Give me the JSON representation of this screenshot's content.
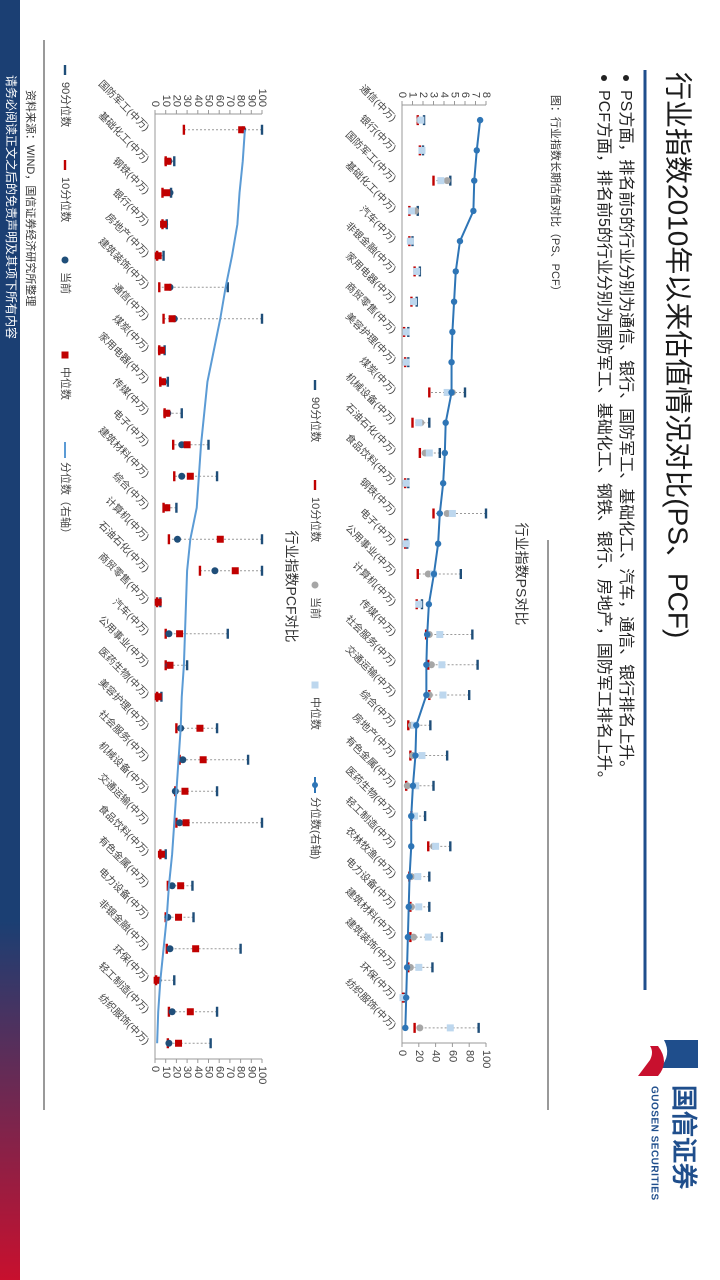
{
  "title": "行业指数2010年以来估值情况对比(PS、PCF)",
  "bullets": [
    "PS方面，排名前5的行业分别为通信、银行、国防军工、基础化工、汽车，通信、银行排名上升。",
    "PCF方面，排名前5的行业分别为国防军工、基础化工、钢铁、银行、房地产，国防军工排名上升。"
  ],
  "figure_caption": "图：行业指数长期估值对比（PS、PCF）",
  "source": "资料来源：WIND，国信证券经济研究所整理",
  "footer": "请务必阅读正文之后的免责声明及其项下所有内容",
  "logo": {
    "name": "国信证券",
    "name_en": "GUOSEN SECURITIES"
  },
  "chart_data": [
    {
      "type": "dot",
      "title": "行业指数PS对比",
      "categories": [
        "通信(中万)",
        "银行(中万)",
        "国防军工(中万)",
        "基础化工(中万)",
        "汽车(中万)",
        "非银金融(中万)",
        "家用电器(中万)",
        "商贸零售(中万)",
        "美容护理(中万)",
        "煤炭(中万)",
        "机械设备(中万)",
        "石油石化(中万)",
        "食品饮料(中万)",
        "钢铁(中万)",
        "电子(中万)",
        "公用事业(中万)",
        "计算机(中万)",
        "传媒(中万)",
        "社会服务(中万)",
        "交通运输(中万)",
        "综合(中万)",
        "房地产(中万)",
        "有色金属(中万)",
        "医药生物(中万)",
        "轻工制造(中万)",
        "农林牧渔(中万)",
        "电力设备(中万)",
        "建筑材料(中万)",
        "建筑装饰(中万)",
        "环保(中万)",
        "纺织服饰(中万)"
      ],
      "series": [
        {
          "name": "90分位数",
          "color": "#1f4e79",
          "marker": "dash",
          "values": [
            2.1,
            2.0,
            4.6,
            1.5,
            1.0,
            1.7,
            1.4,
            0.6,
            0.6,
            6.0,
            2.6,
            3.6,
            0.6,
            8.0,
            0.5,
            5.6,
            1.9,
            6.7,
            7.2,
            6.4,
            2.7,
            4.3,
            3.0,
            2.2,
            4.6,
            2.6,
            2.6,
            3.8,
            2.9,
            0.2,
            7.3
          ]
        },
        {
          "name": "10分位数",
          "color": "#c00000",
          "marker": "dash",
          "values": [
            1.5,
            1.7,
            3.0,
            0.7,
            0.7,
            1.2,
            0.9,
            0.2,
            0.3,
            2.6,
            1.0,
            1.7,
            0.3,
            3.0,
            0.3,
            1.5,
            1.4,
            2.3,
            2.5,
            2.6,
            0.6,
            0.8,
            0.4,
            0.9,
            2.5,
            0.7,
            0.8,
            0.8,
            0.6,
            0.1,
            1.2
          ]
        },
        {
          "name": "当前",
          "color": "#a6a6a6",
          "marker": "circle",
          "values": [
            1.7,
            1.9,
            4.3,
            1.3,
            0.8,
            1.4,
            1.1,
            0.3,
            0.4,
            4.8,
            1.8,
            2.2,
            0.4,
            4.3,
            0.4,
            2.5,
            1.6,
            2.6,
            2.8,
            2.6,
            0.9,
            1.0,
            0.5,
            1.0,
            3.0,
            0.9,
            0.9,
            1.1,
            0.8,
            0.1,
            1.7
          ]
        },
        {
          "name": "中位数",
          "color": "#bdd7ee",
          "marker": "square",
          "values": [
            1.8,
            1.9,
            3.7,
            0.9,
            0.8,
            1.4,
            1.1,
            0.4,
            0.4,
            4.3,
            1.6,
            2.6,
            0.4,
            4.8,
            0.4,
            3.0,
            1.6,
            3.6,
            3.8,
            3.9,
            1.2,
            1.9,
            1.3,
            1.2,
            3.2,
            1.5,
            1.6,
            2.5,
            1.6,
            0.1,
            4.6
          ]
        },
        {
          "name": "分位数(右轴)",
          "color": "#2e75b6",
          "marker": "line-dot",
          "axis": "y2",
          "values": [
            93,
            89,
            86,
            85,
            69,
            64,
            62,
            60,
            59,
            59,
            52,
            51,
            49,
            45,
            43,
            38,
            32,
            30,
            29,
            29,
            17,
            16,
            13,
            11,
            11,
            9,
            8,
            7,
            6,
            5,
            4
          ]
        }
      ],
      "ylim": [
        0,
        8
      ],
      "yticks": [
        0,
        1,
        2,
        3,
        4,
        5,
        6,
        7,
        8
      ],
      "y2lim": [
        0,
        100
      ],
      "y2ticks": [
        0,
        20,
        40,
        60,
        80,
        100
      ]
    },
    {
      "type": "dot",
      "title": "行业指数PCF对比",
      "categories": [
        "国防军工(中万)",
        "基础化工(中万)",
        "钢铁(中万)",
        "银行(中万)",
        "房地产(中万)",
        "建筑装饰(中万)",
        "通信(中万)",
        "煤炭(中万)",
        "家用电器(中万)",
        "传媒(中万)",
        "电子(中万)",
        "建筑材料(中万)",
        "综合(中万)",
        "计算机(中万)",
        "石油石化(中万)",
        "商贸零售(中万)",
        "汽车(中万)",
        "公用事业(中万)",
        "医药生物(中万)",
        "美容护理(中万)",
        "社会服务(中万)",
        "机械设备(中万)",
        "交通运输(中万)",
        "食品饮料(中万)",
        "有色金属(中万)",
        "电力设备(中万)",
        "非银金融(中万)",
        "环保(中万)",
        "轻工制造(中万)",
        "纺织服饰(中万)"
      ],
      "series": [
        {
          "name": "90分位数",
          "color": "#1f4e79",
          "marker": "dash",
          "values": [
            100,
            18,
            15,
            11,
            8,
            68,
            100,
            9,
            12,
            25,
            50,
            58,
            20,
            100,
            100,
            5,
            68,
            30,
            6,
            58,
            87,
            58,
            100,
            10,
            35,
            36,
            80,
            18,
            58,
            52
          ]
        },
        {
          "name": "10分位数",
          "color": "#c00000",
          "marker": "dash",
          "values": [
            27,
            10,
            7,
            7,
            2,
            4,
            8,
            4,
            5,
            9,
            17,
            18,
            8,
            13,
            42,
            2,
            10,
            10,
            2,
            20,
            23,
            19,
            20,
            5,
            12,
            10,
            11,
            1,
            13,
            12
          ]
        },
        {
          "name": "当前",
          "color": "#1f4e79",
          "marker": "circle",
          "values": [
            82,
            13,
            14,
            9,
            3,
            14,
            18,
            6,
            8,
            12,
            25,
            25,
            11,
            21,
            56,
            3,
            13,
            13,
            3,
            24,
            26,
            19,
            23,
            7,
            16,
            12,
            14,
            3,
            16,
            13
          ]
        },
        {
          "name": "中位数",
          "color": "#c00000",
          "marker": "square",
          "values": [
            81,
            12,
            11,
            8,
            3,
            12,
            16,
            6,
            7,
            11,
            30,
            33,
            11,
            61,
            75,
            3,
            23,
            14,
            3,
            42,
            45,
            28,
            29,
            6,
            24,
            22,
            38,
            2,
            33,
            22
          ]
        },
        {
          "name": "分位数（右轴）",
          "color": "#5b9bd5",
          "marker": "line",
          "axis": "y2",
          "values": [
            84,
            82,
            79,
            77,
            72,
            66,
            61,
            55,
            49,
            46,
            43,
            41,
            39,
            33,
            30,
            29,
            28,
            27,
            25,
            24,
            22,
            20,
            18,
            16,
            13,
            11,
            8,
            5,
            3,
            2
          ]
        }
      ],
      "ylim": [
        0,
        100
      ],
      "yticks": [
        0,
        10,
        20,
        30,
        40,
        50,
        60,
        70,
        80,
        90,
        100
      ],
      "y2lim": [
        0,
        100
      ],
      "y2ticks": [
        0,
        10,
        20,
        30,
        40,
        50,
        60,
        70,
        80,
        90,
        100
      ]
    }
  ]
}
